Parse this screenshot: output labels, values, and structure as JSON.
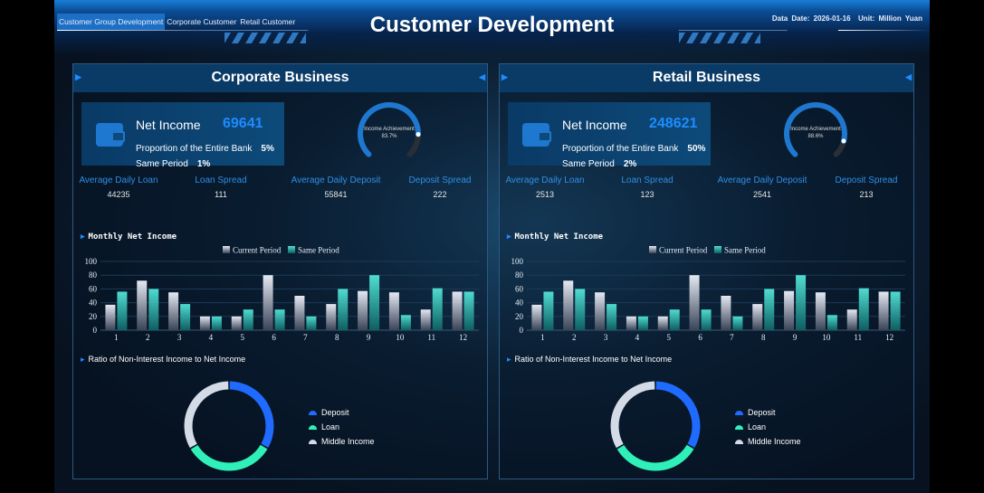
{
  "header": {
    "tabs": [
      "Customer Group Development",
      "Corporate Customer",
      "Retail Customer"
    ],
    "active_tab": 0,
    "title": "Customer Development",
    "data_date_label": "Data Date:",
    "data_date": "2026-01-16",
    "unit": "Unit: Million Yuan"
  },
  "colors": {
    "accent": "#1e8cff",
    "deposit": "#1f6bff",
    "loan": "#2ef0b8",
    "middle_income": "#d3dbe6",
    "current_period": "#c8ccd8",
    "same_period": "#3fcfc4",
    "gauge_track": "#2a2f36"
  },
  "panels": [
    {
      "title": "Corporate Business",
      "net_income_label": "Net Income",
      "net_income": "69641",
      "proportion_label": "Proportion of the Entire Bank",
      "proportion": "5%",
      "same_period_label": "Same Period",
      "same_period": "1%",
      "gauge": {
        "label": "Income Achievement",
        "value_text": "83.7%",
        "value": 83.7
      },
      "stats": [
        {
          "label": "Average Daily Loan",
          "value": "44235"
        },
        {
          "label": "Loan Spread",
          "value": "111"
        },
        {
          "label": "Average Daily Deposit",
          "value": "55841"
        },
        {
          "label": "Deposit Spread",
          "value": "222"
        }
      ],
      "monthly_title": "Monthly Net Income",
      "ratio_title": "Ratio of Non-Interest Income to Net Income",
      "donut_legend": [
        "Deposit",
        "Loan",
        "Middle Income"
      ],
      "donut_values": [
        33.3,
        33.3,
        33.4
      ]
    },
    {
      "title": "Retail Business",
      "net_income_label": "Net Income",
      "net_income": "248621",
      "proportion_label": "Proportion of the Entire Bank",
      "proportion": "50%",
      "same_period_label": "Same Period",
      "same_period": "2%",
      "gauge": {
        "label": "Income Achievement",
        "value_text": "88.6%",
        "value": 88.6
      },
      "stats": [
        {
          "label": "Average Daily Loan",
          "value": "2513"
        },
        {
          "label": "Loan Spread",
          "value": "123"
        },
        {
          "label": "Average Daily Deposit",
          "value": "2541"
        },
        {
          "label": "Deposit Spread",
          "value": "213"
        }
      ],
      "monthly_title": "Monthly Net Income",
      "ratio_title": "Ratio of Non-Interest Income to Net Income",
      "donut_legend": [
        "Deposit",
        "Loan",
        "Middle Income"
      ],
      "donut_values": [
        33.3,
        33.3,
        33.4
      ]
    }
  ],
  "chart_data": [
    {
      "type": "bar",
      "categories": [
        "1",
        "2",
        "3",
        "4",
        "5",
        "6",
        "7",
        "8",
        "9",
        "10",
        "11",
        "12"
      ],
      "series": [
        {
          "name": "Current Period",
          "values": [
            37,
            72,
            55,
            20,
            20,
            80,
            50,
            38,
            57,
            55,
            30,
            56
          ]
        },
        {
          "name": "Same Period",
          "values": [
            56,
            60,
            38,
            20,
            30,
            30,
            20,
            60,
            80,
            22,
            61,
            56
          ]
        }
      ],
      "ylim": [
        0,
        100
      ],
      "yticks": [
        "0",
        "20",
        "40",
        "60",
        "80",
        "100"
      ],
      "grid": true,
      "legend": "top"
    },
    {
      "type": "bar",
      "categories": [
        "1",
        "2",
        "3",
        "4",
        "5",
        "6",
        "7",
        "8",
        "9",
        "10",
        "11",
        "12"
      ],
      "series": [
        {
          "name": "Current Period",
          "values": [
            37,
            72,
            55,
            20,
            20,
            80,
            50,
            38,
            57,
            55,
            30,
            56
          ]
        },
        {
          "name": "Same Period",
          "values": [
            56,
            60,
            38,
            20,
            30,
            30,
            20,
            60,
            80,
            22,
            61,
            56
          ]
        }
      ],
      "ylim": [
        0,
        100
      ],
      "yticks": [
        "0",
        "20",
        "40",
        "60",
        "80",
        "100"
      ],
      "grid": true,
      "legend": "top"
    }
  ]
}
